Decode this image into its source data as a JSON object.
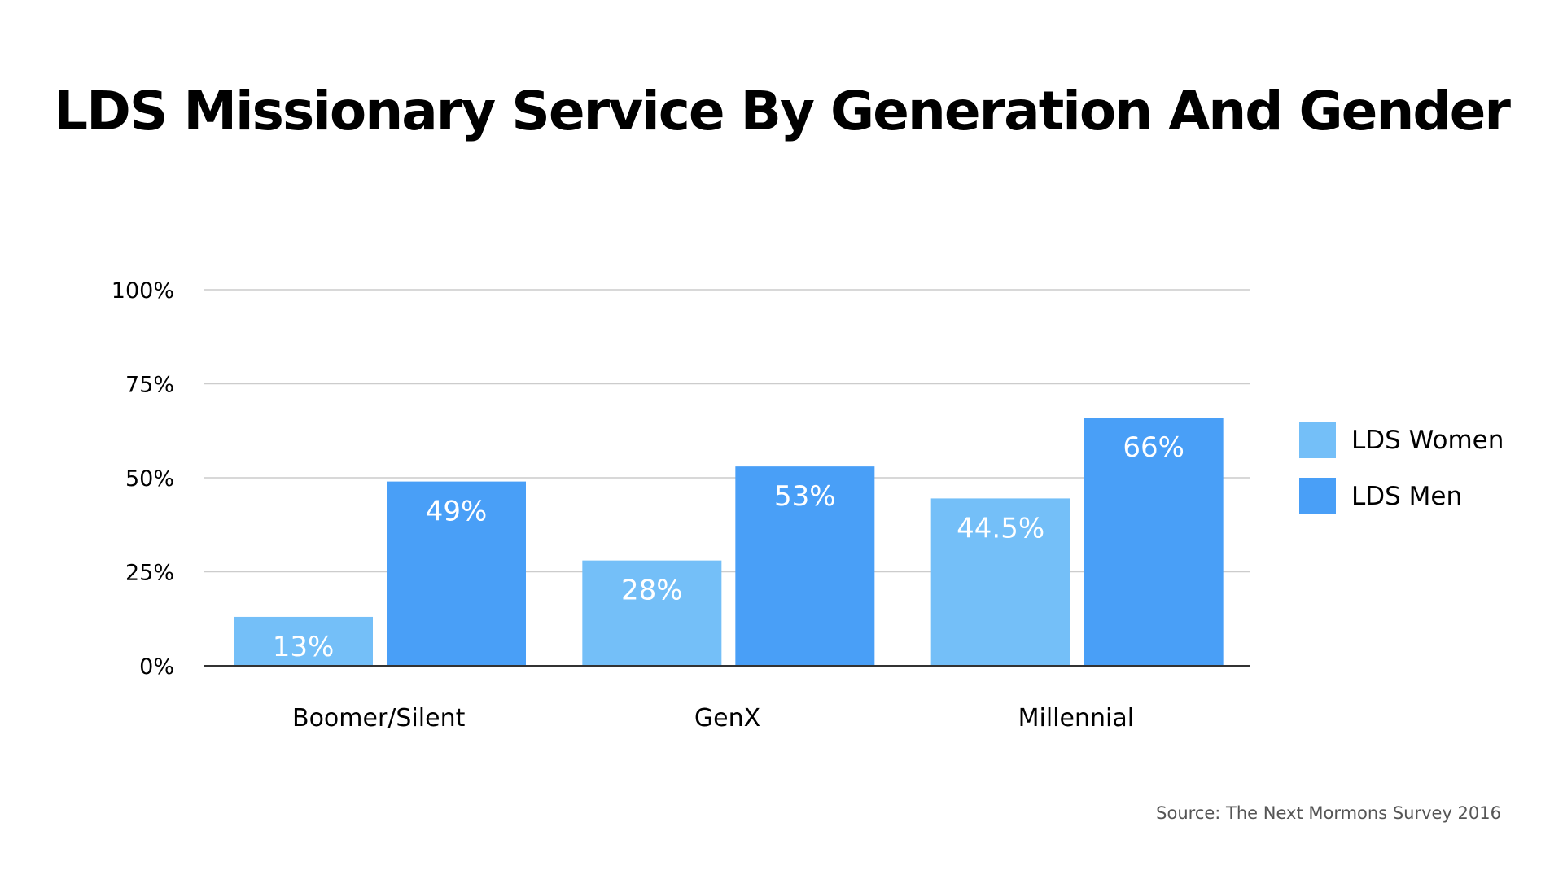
{
  "chart_data": {
    "type": "bar",
    "title": "LDS Missionary Service By Generation And Gender",
    "categories": [
      "Boomer/Silent",
      "GenX",
      "Millennial"
    ],
    "series": [
      {
        "name": "LDS Women",
        "values": [
          13,
          28,
          44.5
        ],
        "labels": [
          "13%",
          "28%",
          "44.5%"
        ],
        "color": "#74BFF8"
      },
      {
        "name": "LDS Men",
        "values": [
          49,
          53,
          66
        ],
        "labels": [
          "49%",
          "53%",
          "66%"
        ],
        "color": "#499FF7"
      }
    ],
    "y_ticks": [
      0,
      25,
      50,
      75,
      100
    ],
    "y_tick_labels": [
      "0%",
      "25%",
      "50%",
      "75%",
      "100%"
    ],
    "ylim": [
      0,
      100
    ],
    "xlabel": "",
    "ylabel": "",
    "grid": true,
    "legend_position": "right",
    "source": "Source: The Next Mormons Survey 2016"
  }
}
